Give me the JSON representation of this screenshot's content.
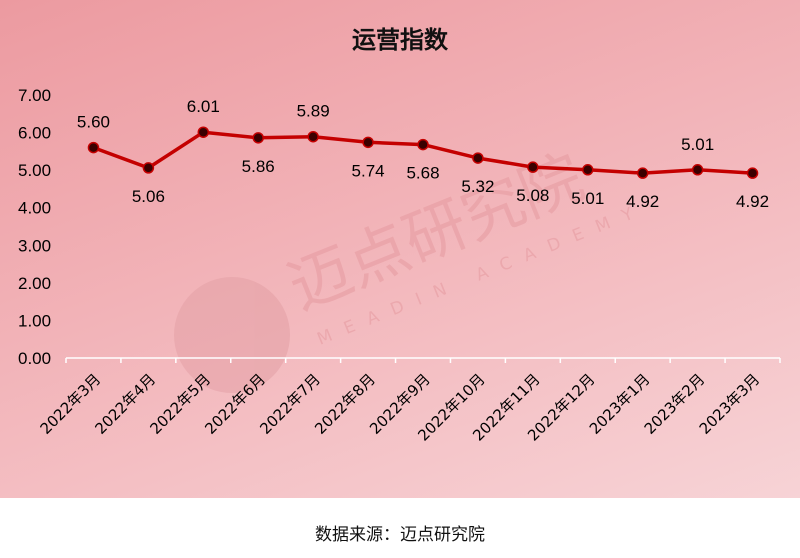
{
  "chart_data": {
    "type": "line",
    "title": "运营指数",
    "categories": [
      "2022年3月",
      "2022年4月",
      "2022年5月",
      "2022年6月",
      "2022年7月",
      "2022年8月",
      "2022年9月",
      "2022年10月",
      "2022年11月",
      "2022年12月",
      "2023年1月",
      "2023年2月",
      "2023年3月"
    ],
    "values": [
      5.6,
      5.06,
      6.01,
      5.86,
      5.89,
      5.74,
      5.68,
      5.32,
      5.08,
      5.01,
      4.92,
      5.01,
      4.92
    ],
    "data_labels": [
      "5.60",
      "5.06",
      "6.01",
      "5.86",
      "5.89",
      "5.74",
      "5.68",
      "5.32",
      "5.08",
      "5.01",
      "4.92",
      "5.01",
      "4.92"
    ],
    "yticks": [
      "0.00",
      "1.00",
      "2.00",
      "3.00",
      "4.00",
      "5.00",
      "6.00",
      "7.00"
    ],
    "ylim": [
      0,
      7
    ],
    "grid": false,
    "legend": "none",
    "colors": {
      "line": "#c40000",
      "marker": "#3a0000",
      "background": "#f2b3b8"
    }
  },
  "watermark": {
    "cn": "迈点研究院",
    "en": "MEADIN ACADEMY"
  },
  "source": "数据来源：迈点研究院"
}
